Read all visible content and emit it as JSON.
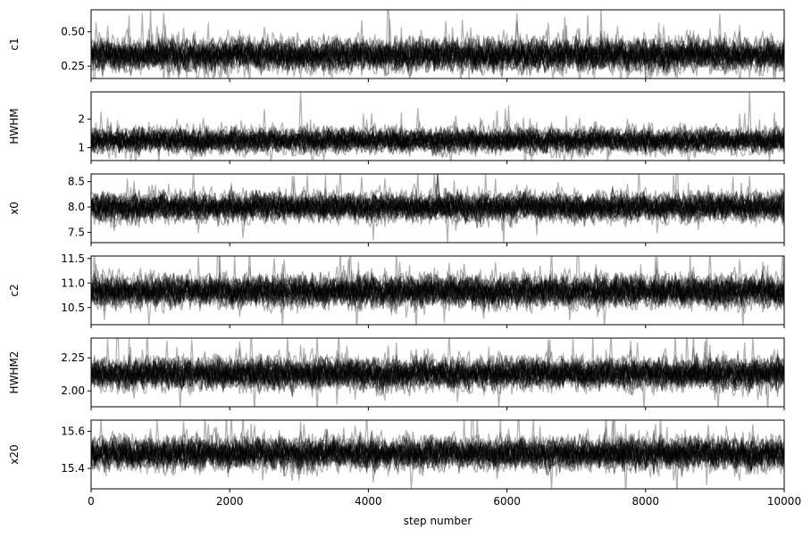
{
  "chart_data": {
    "type": "line",
    "description_style": "MCMC walker trace plots, 6 stacked panels sharing x-axis",
    "line_color": "#000000",
    "line_opacity": 0.3,
    "xlabel": "step number",
    "xlim": [
      0,
      10000
    ],
    "xticks": [
      0,
      2000,
      4000,
      6000,
      8000,
      10000
    ],
    "xtick_labels": [
      "0",
      "2000",
      "4000",
      "6000",
      "8000",
      "10000"
    ],
    "grid": false,
    "panels": [
      {
        "ylabel": "c1",
        "ylim": [
          0.16,
          0.66
        ],
        "yticks": [
          0.25,
          0.5
        ],
        "ytick_labels": [
          "0.25",
          "0.50"
        ],
        "center": 0.33,
        "spread": 0.055
      },
      {
        "ylabel": "HWHM",
        "ylim": [
          0.55,
          2.95
        ],
        "yticks": [
          1,
          2
        ],
        "ytick_labels": [
          "1",
          "2"
        ],
        "center": 1.25,
        "spread": 0.2
      },
      {
        "ylabel": "x0",
        "ylim": [
          7.3,
          8.65
        ],
        "yticks": [
          7.5,
          8.0,
          8.5
        ],
        "ytick_labels": [
          "7.5",
          "8.0",
          "8.5"
        ],
        "center": 8.0,
        "spread": 0.13
      },
      {
        "ylabel": "c2",
        "ylim": [
          10.15,
          11.55
        ],
        "yticks": [
          10.5,
          11.0,
          11.5
        ],
        "ytick_labels": [
          "10.5",
          "11.0",
          "11.5"
        ],
        "center": 10.83,
        "spread": 0.15
      },
      {
        "ylabel": "HWHM2",
        "ylim": [
          1.88,
          2.4
        ],
        "yticks": [
          2.0,
          2.25
        ],
        "ytick_labels": [
          "2.00",
          "2.25"
        ],
        "center": 2.13,
        "spread": 0.055
      },
      {
        "ylabel": "x20",
        "ylim": [
          15.29,
          15.66
        ],
        "yticks": [
          15.4,
          15.6
        ],
        "ytick_labels": [
          "15.4",
          "15.6"
        ],
        "center": 15.48,
        "spread": 0.04
      }
    ]
  }
}
